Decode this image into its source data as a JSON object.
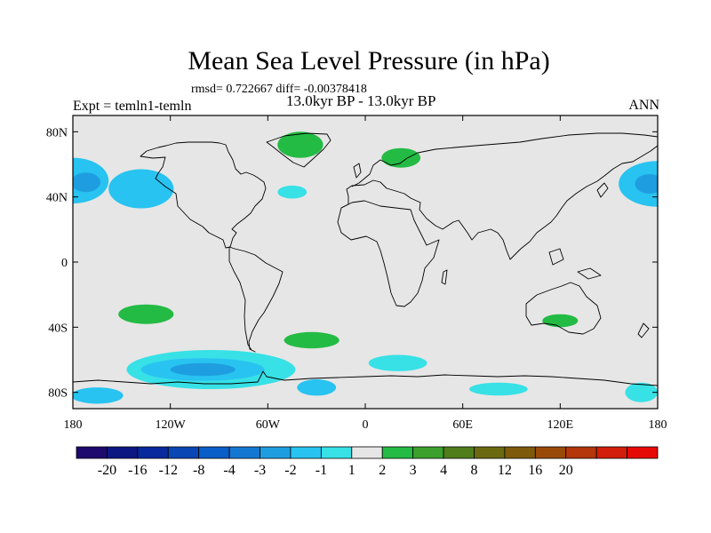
{
  "title": "Mean Sea Level Pressure (in hPa)",
  "stats": "rmsd= 0.722667 diff= -0.00378418",
  "period": "13.0kyr BP - 13.0kyr BP",
  "experiment": "Expt = temln1-temln",
  "season": "ANN",
  "map": {
    "projection": "cylindrical equidistant",
    "lat_range": [
      -90,
      90
    ],
    "lon_range": [
      -180,
      180
    ],
    "x_ticks": [
      {
        "lon": -180,
        "label": "180"
      },
      {
        "lon": -120,
        "label": "120W"
      },
      {
        "lon": -60,
        "label": "60W"
      },
      {
        "lon": 0,
        "label": "0"
      },
      {
        "lon": 60,
        "label": "60E"
      },
      {
        "lon": 120,
        "label": "120E"
      },
      {
        "lon": 180,
        "label": "180"
      }
    ],
    "y_ticks": [
      {
        "lat": 80,
        "label": "80N"
      },
      {
        "lat": 40,
        "label": "40N"
      },
      {
        "lat": 0,
        "label": "0"
      },
      {
        "lat": -40,
        "label": "40S"
      },
      {
        "lat": -80,
        "label": "80S"
      }
    ],
    "anomaly_regions": [
      {
        "name": "north-pacific-west",
        "value": -2,
        "lon": 180,
        "lat": 48,
        "rlon": 24,
        "rlat": 14
      },
      {
        "name": "north-pacific-west-core",
        "value": -3,
        "lon": 175,
        "lat": 48,
        "rlon": 9,
        "rlat": 6
      },
      {
        "name": "north-pacific-east",
        "value": -2,
        "lon": -180,
        "lat": 50,
        "rlon": 22,
        "rlat": 14
      },
      {
        "name": "north-pacific-east-core",
        "value": -3,
        "lon": -172,
        "lat": 49,
        "rlon": 9,
        "rlat": 6
      },
      {
        "name": "west-north-america",
        "value": -2,
        "lon": -138,
        "lat": 45,
        "rlon": 20,
        "rlat": 12
      },
      {
        "name": "mid-atlantic",
        "value": -1,
        "lon": -45,
        "lat": 43,
        "rlon": 9,
        "rlat": 4
      },
      {
        "name": "south-pacific",
        "value": -1,
        "lon": -95,
        "lat": -66,
        "rlon": 52,
        "rlat": 12
      },
      {
        "name": "south-pacific-mid",
        "value": -2,
        "lon": -100,
        "lat": -66,
        "rlon": 38,
        "rlat": 7
      },
      {
        "name": "south-pacific-core",
        "value": -3,
        "lon": -100,
        "lat": -66,
        "rlon": 20,
        "rlat": 4
      },
      {
        "name": "ross-sea",
        "value": -2,
        "lon": -165,
        "lat": -82,
        "rlon": 16,
        "rlat": 5
      },
      {
        "name": "weddell-sea",
        "value": -2,
        "lon": -30,
        "lat": -77,
        "rlon": 12,
        "rlat": 5
      },
      {
        "name": "south-atlantic",
        "value": -1,
        "lon": 20,
        "lat": -62,
        "rlon": 18,
        "rlat": 5
      },
      {
        "name": "south-indian",
        "value": -1,
        "lon": 82,
        "lat": -78,
        "rlon": 18,
        "rlat": 4
      },
      {
        "name": "east-antarctic",
        "value": -1,
        "lon": 170,
        "lat": -80,
        "rlon": 10,
        "rlat": 6
      },
      {
        "name": "greenland",
        "value": 1,
        "lon": -40,
        "lat": 72,
        "rlon": 14,
        "rlat": 8
      },
      {
        "name": "scandinavia",
        "value": 1,
        "lon": 22,
        "lat": 64,
        "rlon": 12,
        "rlat": 6
      },
      {
        "name": "south-pacific-green",
        "value": 1,
        "lon": -135,
        "lat": -32,
        "rlon": 17,
        "rlat": 6
      },
      {
        "name": "south-atlantic-green",
        "value": 1,
        "lon": -33,
        "lat": -48,
        "rlon": 17,
        "rlat": 5
      },
      {
        "name": "australia-green",
        "value": 1,
        "lon": 120,
        "lat": -36,
        "rlon": 11,
        "rlat": 4
      }
    ]
  },
  "colorbar": {
    "colors": [
      "#1e0a6e",
      "#0c1782",
      "#08289e",
      "#0a46b4",
      "#0a5ec8",
      "#1478d2",
      "#1e9ee0",
      "#28c3f0",
      "#37e1e6",
      "#e6e6e6",
      "#23bb44",
      "#3ca02c",
      "#507e1a",
      "#6b6a10",
      "#7e5a0c",
      "#9a4a08",
      "#b4360a",
      "#d21e0a",
      "#e60a06"
    ],
    "labels": [
      "-20",
      "-16",
      "-12",
      "-8",
      "-4",
      "-3",
      "-2",
      "-1",
      "1",
      "2",
      "3",
      "4",
      "8",
      "12",
      "16",
      "20"
    ]
  }
}
